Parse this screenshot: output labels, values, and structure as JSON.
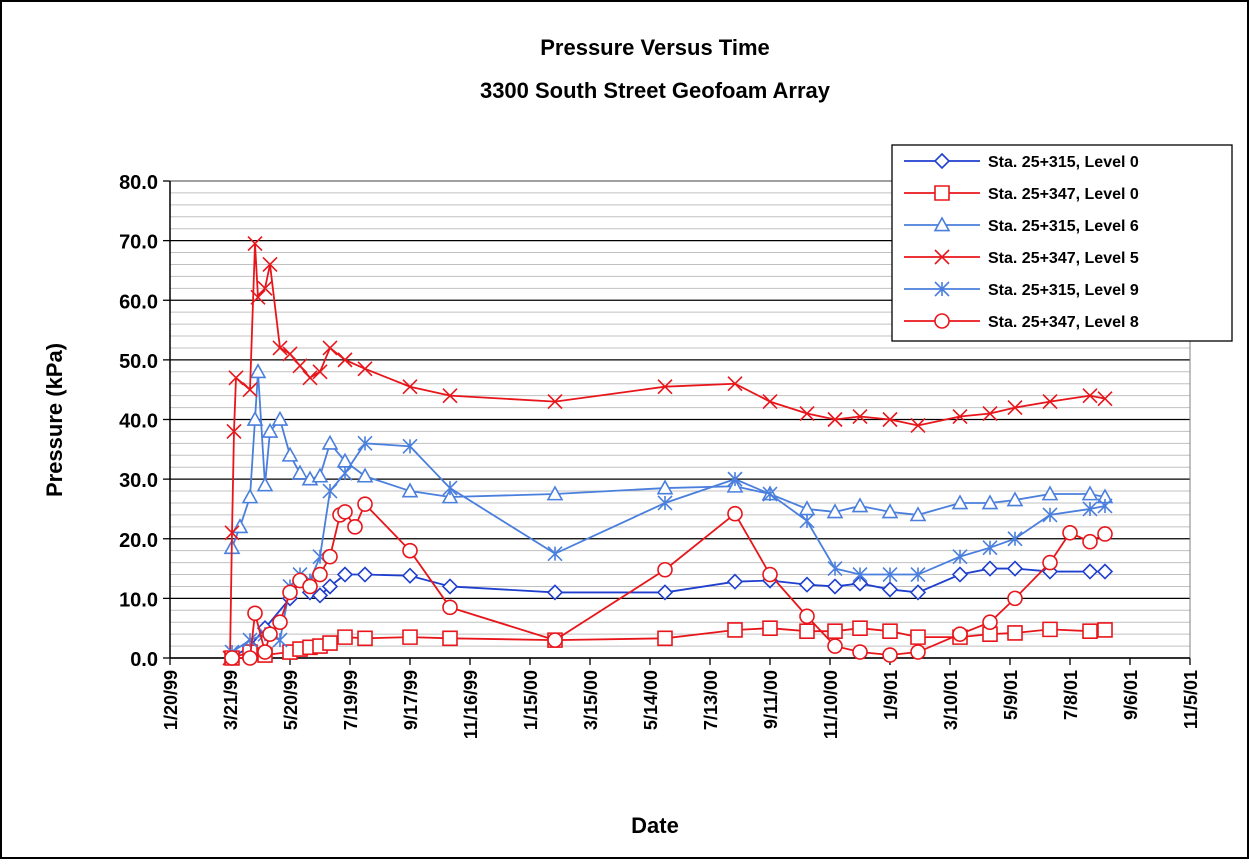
{
  "chart_data": {
    "type": "line",
    "title": "Pressure Versus Time",
    "subtitle": "3300 South Street Geofoam Array",
    "x_label": "Date",
    "y_label": "Pressure (kPa)",
    "xlim": [
      "1999-01-20",
      "2001-11-05"
    ],
    "xticks": [
      {
        "value": "1999-01-20",
        "label": "1/20/99"
      },
      {
        "value": "1999-03-21",
        "label": "3/21/99"
      },
      {
        "value": "1999-05-20",
        "label": "5/20/99"
      },
      {
        "value": "1999-07-19",
        "label": "7/19/99"
      },
      {
        "value": "1999-09-17",
        "label": "9/17/99"
      },
      {
        "value": "1999-11-16",
        "label": "11/16/99"
      },
      {
        "value": "2000-01-15",
        "label": "1/15/00"
      },
      {
        "value": "2000-03-15",
        "label": "3/15/00"
      },
      {
        "value": "2000-05-14",
        "label": "5/14/00"
      },
      {
        "value": "2000-07-13",
        "label": "7/13/00"
      },
      {
        "value": "2000-09-11",
        "label": "9/11/00"
      },
      {
        "value": "2000-11-10",
        "label": "11/10/00"
      },
      {
        "value": "2001-01-09",
        "label": "1/9/01"
      },
      {
        "value": "2001-03-10",
        "label": "3/10/01"
      },
      {
        "value": "2001-05-09",
        "label": "5/9/01"
      },
      {
        "value": "2001-07-08",
        "label": "7/8/01"
      },
      {
        "value": "2001-09-06",
        "label": "9/6/01"
      },
      {
        "value": "2001-11-05",
        "label": "11/5/01"
      }
    ],
    "ylim": [
      0,
      80
    ],
    "yticks": [
      {
        "value": 0,
        "label": "0.0"
      },
      {
        "value": 10,
        "label": "10.0"
      },
      {
        "value": 20,
        "label": "20.0"
      },
      {
        "value": 30,
        "label": "30.0"
      },
      {
        "value": 40,
        "label": "40.0"
      },
      {
        "value": 50,
        "label": "50.0"
      },
      {
        "value": 60,
        "label": "60.0"
      },
      {
        "value": 70,
        "label": "70.0"
      },
      {
        "value": 80,
        "label": "80.0"
      }
    ],
    "grid": true,
    "minor_grid": true,
    "legend": "upper right",
    "series": [
      {
        "name": "Sta. 25+315, Level 0",
        "color": "#1f3fcf",
        "marker": "diamond",
        "x": [
          "1999-03-23",
          "1999-04-10",
          "1999-04-25",
          "1999-05-20",
          "1999-05-30",
          "1999-06-09",
          "1999-06-19",
          "1999-06-29",
          "1999-07-14",
          "1999-08-03",
          "1999-09-17",
          "1999-10-27",
          "2000-02-09",
          "2000-05-29",
          "2000-08-07",
          "2000-09-11",
          "2000-10-18",
          "2000-11-15",
          "2000-12-10",
          "2001-01-09",
          "2001-02-06",
          "2001-03-20",
          "2001-04-19",
          "2001-05-14",
          "2001-06-18",
          "2001-07-28",
          "2001-08-12"
        ],
        "values": [
          0,
          2,
          5,
          10,
          13,
          11,
          10.5,
          12,
          14,
          14,
          13.8,
          12,
          11,
          11,
          12.8,
          13,
          12.3,
          12,
          12.5,
          11.5,
          11,
          14,
          15,
          15,
          14.5,
          14.5,
          14.5
        ]
      },
      {
        "name": "Sta. 25+347, Level 0",
        "color": "#e8161b",
        "marker": "square",
        "x": [
          "1999-03-23",
          "1999-04-10",
          "1999-04-25",
          "1999-05-20",
          "1999-05-30",
          "1999-06-09",
          "1999-06-19",
          "1999-06-29",
          "1999-07-14",
          "1999-08-03",
          "1999-09-17",
          "1999-10-27",
          "2000-02-09",
          "2000-05-29",
          "2000-08-07",
          "2000-09-11",
          "2000-10-18",
          "2000-11-15",
          "2000-12-10",
          "2001-01-09",
          "2001-02-06",
          "2001-03-20",
          "2001-04-19",
          "2001-05-14",
          "2001-06-18",
          "2001-07-28",
          "2001-08-12"
        ],
        "values": [
          0,
          1,
          0.5,
          1,
          1.5,
          1.8,
          2,
          2.5,
          3.5,
          3.3,
          3.5,
          3.3,
          3,
          3.3,
          4.7,
          5,
          4.5,
          4.5,
          5,
          4.5,
          3.5,
          3.5,
          4,
          4.2,
          4.8,
          4.5,
          4.7
        ]
      },
      {
        "name": "Sta. 25+315, Level 6",
        "color": "#4a7fdd",
        "marker": "triangle",
        "x": [
          "1999-03-23",
          "1999-03-31",
          "1999-04-10",
          "1999-04-15",
          "1999-04-18",
          "1999-04-25",
          "1999-04-30",
          "1999-05-10",
          "1999-05-20",
          "1999-05-30",
          "1999-06-09",
          "1999-06-19",
          "1999-06-29",
          "1999-07-14",
          "1999-08-03",
          "1999-09-17",
          "1999-10-27",
          "2000-02-09",
          "2000-05-29",
          "2000-08-07",
          "2000-09-11",
          "2000-10-18",
          "2000-11-15",
          "2000-12-10",
          "2001-01-09",
          "2001-02-06",
          "2001-03-20",
          "2001-04-19",
          "2001-05-14",
          "2001-06-18",
          "2001-07-28",
          "2001-08-12"
        ],
        "values": [
          18.5,
          22,
          27,
          40,
          48,
          29,
          38,
          40,
          34,
          31,
          30,
          30.5,
          36,
          33,
          30.5,
          28,
          27,
          27.5,
          28.5,
          28.8,
          27.5,
          25,
          24.5,
          25.5,
          24.5,
          24,
          26,
          26,
          26.5,
          27.5,
          27.5,
          27
        ]
      },
      {
        "name": "Sta. 25+347, Level 5",
        "color": "#e8161b",
        "marker": "x",
        "x": [
          "1999-03-21",
          "1999-03-23",
          "1999-03-25",
          "1999-03-27",
          "1999-04-10",
          "1999-04-15",
          "1999-04-18",
          "1999-04-25",
          "1999-04-30",
          "1999-05-10",
          "1999-05-20",
          "1999-05-30",
          "1999-06-09",
          "1999-06-19",
          "1999-06-29",
          "1999-07-14",
          "1999-08-03",
          "1999-09-17",
          "1999-10-27",
          "2000-02-09",
          "2000-05-29",
          "2000-08-07",
          "2000-09-11",
          "2000-10-18",
          "2000-11-15",
          "2000-12-10",
          "2001-01-09",
          "2001-02-06",
          "2001-03-20",
          "2001-04-19",
          "2001-05-14",
          "2001-06-18",
          "2001-07-28",
          "2001-08-12"
        ],
        "values": [
          0,
          21,
          38,
          47,
          45,
          69.5,
          60.5,
          62,
          66,
          52,
          51,
          49,
          47,
          48,
          52,
          50,
          48.5,
          45.5,
          44,
          43,
          45.5,
          46,
          43,
          41,
          40,
          40.5,
          40,
          39,
          40.5,
          41,
          42,
          43,
          44,
          43.5
        ]
      },
      {
        "name": "Sta. 25+315, Level 9",
        "color": "#4a7fdd",
        "marker": "star",
        "x": [
          "1999-03-23",
          "1999-04-10",
          "1999-04-25",
          "1999-05-10",
          "1999-05-20",
          "1999-05-30",
          "1999-06-09",
          "1999-06-19",
          "1999-06-29",
          "1999-07-14",
          "1999-08-03",
          "1999-09-17",
          "1999-10-27",
          "2000-02-09",
          "2000-05-29",
          "2000-08-07",
          "2000-09-11",
          "2000-10-18",
          "2000-11-15",
          "2000-12-10",
          "2001-01-09",
          "2001-02-06",
          "2001-03-20",
          "2001-04-19",
          "2001-05-14",
          "2001-06-18",
          "2001-07-28",
          "2001-08-12"
        ],
        "values": [
          1,
          3,
          4,
          3,
          12,
          14,
          13,
          17,
          28,
          31,
          36,
          35.5,
          28.5,
          17.5,
          26,
          30,
          27.5,
          23,
          15,
          14,
          14,
          14,
          17,
          18.5,
          20,
          24,
          25,
          25.5
        ]
      },
      {
        "name": "Sta. 25+347, Level 8",
        "color": "#e8161b",
        "marker": "circle",
        "x": [
          "1999-03-23",
          "1999-04-10",
          "1999-04-15",
          "1999-04-25",
          "1999-04-30",
          "1999-05-10",
          "1999-05-20",
          "1999-05-30",
          "1999-06-09",
          "1999-06-19",
          "1999-06-29",
          "1999-07-09",
          "1999-07-14",
          "1999-07-24",
          "1999-08-03",
          "1999-09-17",
          "1999-10-27",
          "2000-02-09",
          "2000-05-29",
          "2000-08-07",
          "2000-09-11",
          "2000-10-18",
          "2000-11-15",
          "2000-12-10",
          "2001-01-09",
          "2001-02-06",
          "2001-03-20",
          "2001-04-19",
          "2001-05-14",
          "2001-06-18",
          "2001-07-08",
          "2001-07-28",
          "2001-08-12"
        ],
        "values": [
          0,
          0,
          7.5,
          1,
          4,
          6,
          11,
          13,
          12,
          14,
          17,
          24,
          24.5,
          22,
          25.8,
          18,
          8.5,
          3,
          14.8,
          24.2,
          14,
          7,
          2,
          1,
          0.5,
          1,
          4,
          6,
          10,
          16,
          21,
          19.5,
          20.8
        ]
      }
    ]
  }
}
